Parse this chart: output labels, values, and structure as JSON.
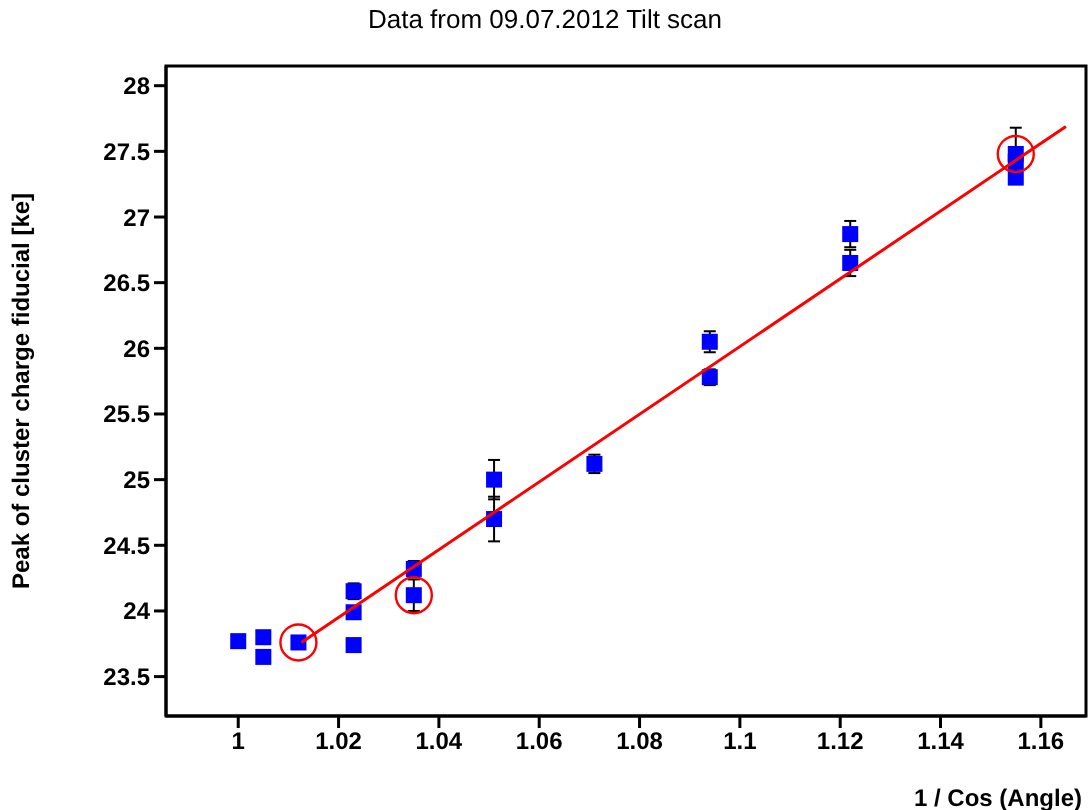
{
  "chart_data": {
    "type": "scatter",
    "title": "Data from 09.07.2012 Tilt scan",
    "xlabel": "1 / Cos (Angle)",
    "ylabel": "Peak of cluster charge fiducial [ke]",
    "xlim": [
      0.9856,
      1.169
    ],
    "xticks": [
      1,
      1.02,
      1.04,
      1.06,
      1.08,
      1.1,
      1.12,
      1.14,
      1.16
    ],
    "ylim": [
      23.2,
      28.15
    ],
    "yticks": [
      23.5,
      24,
      24.5,
      25,
      25.5,
      26,
      26.5,
      27,
      27.5,
      28
    ],
    "series": [
      {
        "marker": "square",
        "color": "#0000ff",
        "x": [
          1.0,
          1.005,
          1.005,
          1.012,
          1.023,
          1.023,
          1.023,
          1.035,
          1.035,
          1.051,
          1.051,
          1.071,
          1.094,
          1.094,
          1.122,
          1.122,
          1.155,
          1.155,
          1.155
        ],
        "values": [
          23.77,
          23.8,
          23.65,
          23.76,
          24.15,
          23.99,
          23.74,
          24.32,
          24.12,
          25.0,
          24.7,
          25.12,
          26.05,
          25.78,
          26.87,
          26.65,
          27.48,
          27.42,
          27.3
        ],
        "errors": [
          null,
          null,
          null,
          null,
          0.06,
          null,
          null,
          0.06,
          0.12,
          0.15,
          0.17,
          0.07,
          0.08,
          0.06,
          0.1,
          0.1,
          0.2,
          0.1,
          null
        ]
      },
      {
        "marker": "circle",
        "color": "#ff0000",
        "x": [
          1.012,
          1.035,
          1.155
        ],
        "values": [
          23.76,
          24.12,
          27.48
        ]
      },
      {
        "type": "line",
        "marker": "none",
        "color": "#ff0000",
        "x": [
          1.0126,
          1.165
        ],
        "values": [
          23.76,
          27.69
        ]
      }
    ]
  }
}
